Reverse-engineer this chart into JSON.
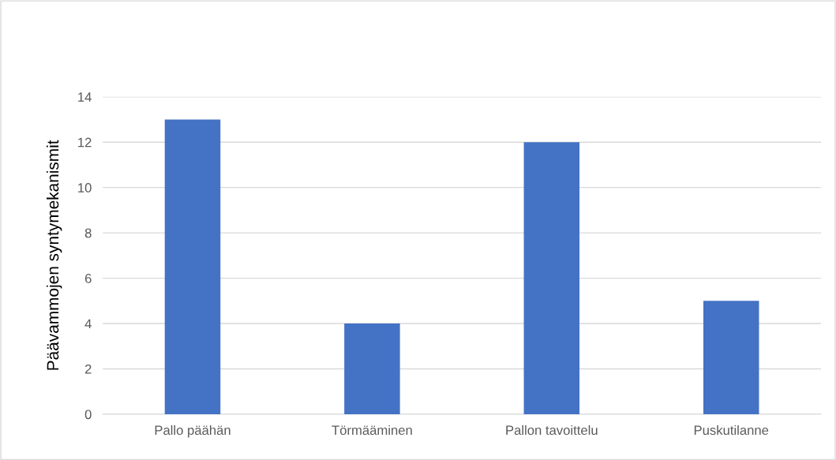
{
  "chart_data": {
    "type": "bar",
    "ylabel": "Päävammojen syntymekanismit",
    "categories": [
      "Pallo päähän",
      "Törmääminen",
      "Pallon tavoittelu",
      "Puskutilanne"
    ],
    "values": [
      13,
      4,
      12,
      5
    ],
    "color": "#4472c4",
    "ylim": [
      0,
      14
    ],
    "yticks": [
      0,
      2,
      4,
      6,
      8,
      10,
      12,
      14
    ],
    "grid": "y"
  }
}
